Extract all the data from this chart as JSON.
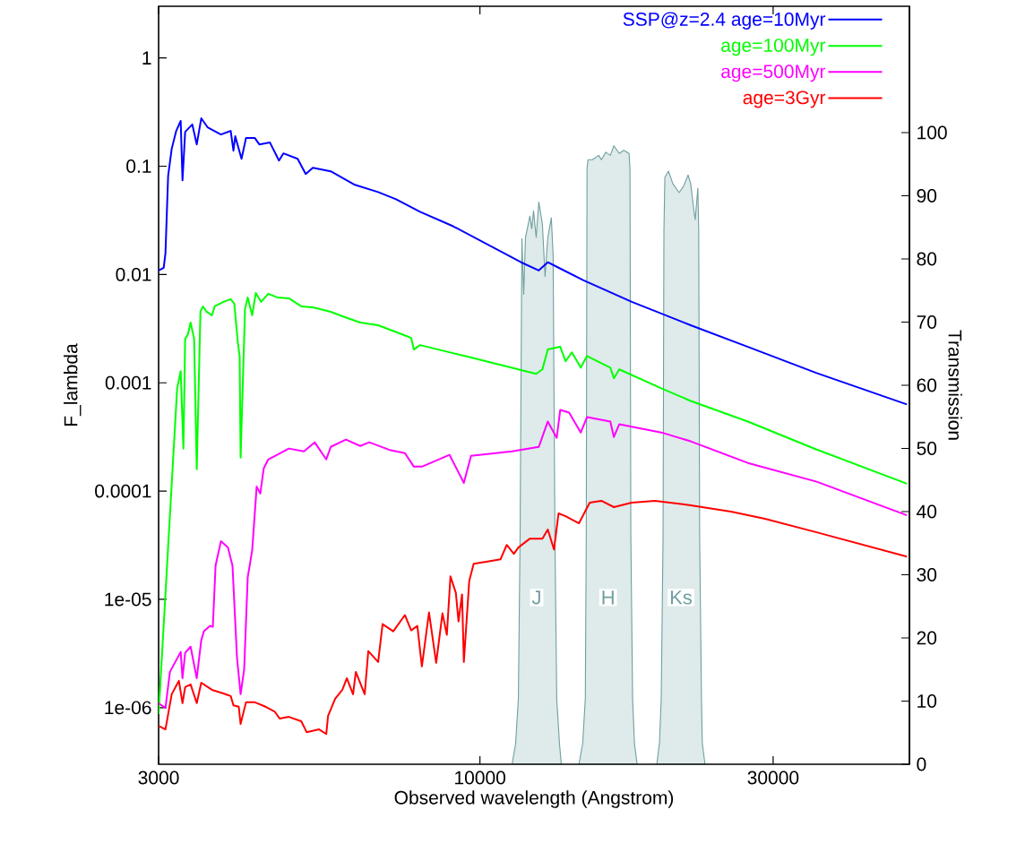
{
  "chart_data": {
    "type": "line",
    "xlabel": "Observed wavelength  (Angstrom)",
    "ylabel": "F_lambda",
    "y2label": "Transmission",
    "log": "xy",
    "legend": "top right",
    "marker": "none",
    "line_style": "solid",
    "xlim": [
      3000,
      50000
    ],
    "xticks": [
      3000,
      10000,
      30000
    ],
    "ylim": [
      3e-07,
      3
    ],
    "yticks": [
      1,
      0.1,
      0.01,
      0.001,
      0.0001,
      {
        "value": 1e-05,
        "label": "1e-05"
      },
      {
        "value": 1e-06,
        "label": "1e-06"
      }
    ],
    "y2lim": [
      0,
      120
    ],
    "y2ticks": [
      0,
      10,
      20,
      30,
      40,
      50,
      60,
      70,
      80,
      90,
      100
    ],
    "series": [
      {
        "name": "SSP@z=2.4  age=10Myr",
        "color": "#0000ff",
        "x": [
          3000,
          3058,
          3078,
          3109,
          3151,
          3205,
          3259,
          3281,
          3314,
          3404,
          3461,
          3520,
          3604,
          3789,
          3931,
          3971,
          3998,
          4093,
          4162,
          4303,
          4375,
          4553,
          4710,
          4788,
          5051,
          5206,
          5347,
          5718,
          6259,
          6829,
          7302,
          7991,
          9045,
          11665,
          12469,
          12895,
          13512,
          14745,
          17665,
          22029,
          27290,
          35318,
          49530
        ],
        "values": [
          0.0109,
          0.01156,
          0.0157,
          0.0815,
          0.1447,
          0.212,
          0.262,
          0.0741,
          0.208,
          0.243,
          0.159,
          0.277,
          0.229,
          0.1965,
          0.212,
          0.139,
          0.189,
          0.117,
          0.182,
          0.182,
          0.159,
          0.1655,
          0.1128,
          0.1315,
          0.117,
          0.0847,
          0.0968,
          0.0897,
          0.0673,
          0.0577,
          0.0495,
          0.0379,
          0.0279,
          0.01297,
          0.0109,
          0.01297,
          0.01135,
          0.00885,
          0.00559,
          0.0034,
          0.00215,
          0.00123,
          0.000631
        ]
      },
      {
        "name": "age=100Myr",
        "color": "#00ff00",
        "x": [
          3000,
          3216,
          3259,
          3292,
          3314,
          3348,
          3382,
          3427,
          3461,
          3509,
          3543,
          3591,
          3664,
          3701,
          3826,
          3931,
          3984,
          4037,
          4064,
          4079,
          4147,
          4189,
          4260,
          4318,
          4405,
          4524,
          4678,
          4887,
          5120,
          5347,
          5718,
          5973,
          6386,
          6829,
          7474,
          7729,
          7807,
          7991,
          9447,
          12346,
          12638,
          12895,
          13512,
          13785,
          14112,
          14591,
          14938,
          16301,
          16520,
          16853,
          19730,
          22029,
          27290,
          35318,
          49530
        ],
        "values": [
          8.71e-07,
          0.00089,
          0.00128,
          0.000247,
          0.00255,
          0.0028,
          0.0036,
          0.00255,
          0.000159,
          0.00453,
          0.00508,
          0.00453,
          0.0042,
          0.00508,
          0.00559,
          0.00592,
          0.00538,
          0.00236,
          0.00177,
          0.000204,
          0.0048,
          0.00615,
          0.0042,
          0.00676,
          0.00559,
          0.00664,
          0.00615,
          0.00603,
          0.00508,
          0.00498,
          0.00453,
          0.00411,
          0.0036,
          0.0034,
          0.0028,
          0.0026,
          0.00203,
          0.00223,
          0.00177,
          0.00121,
          0.00133,
          0.00203,
          0.00215,
          0.00158,
          0.00191,
          0.00138,
          0.00177,
          0.00138,
          0.0011,
          0.00133,
          0.00089,
          0.00068,
          0.000439,
          0.000242,
          0.000117
        ]
      },
      {
        "name": "age=500Myr",
        "color": "#ff00ff",
        "x": [
          3000,
          3078,
          3130,
          3259,
          3281,
          3314,
          3382,
          3461,
          3520,
          3555,
          3639,
          3676,
          3714,
          3789,
          3891,
          3957,
          4024,
          4079,
          4134,
          4189,
          4260,
          4332,
          4391,
          4448,
          4524,
          4678,
          4887,
          5172,
          5383,
          5623,
          5718,
          6053,
          6386,
          6605,
          7157,
          7550,
          7807,
          8045,
          8925,
          9415,
          9672,
          11280,
          12469,
          12895,
          13335,
          13512,
          13969,
          14591,
          14938,
          16301,
          16520,
          16853,
          19730,
          22029,
          27290,
          35318,
          49530
        ],
        "values": [
          1.096e-06,
          9.96e-07,
          2.14e-06,
          3.27e-06,
          1.87e-06,
          3.21e-06,
          3.66e-06,
          1.87e-06,
          4.19e-06,
          5.07e-06,
          5.69e-06,
          5.57e-06,
          2.05e-05,
          3.44e-05,
          3.01e-05,
          2.05e-05,
          2.91e-06,
          1.33e-06,
          2.27e-06,
          1.6e-05,
          2.84e-05,
          0.00011,
          9.48e-05,
          0.000162,
          0.000196,
          0.000216,
          0.000247,
          0.000233,
          0.000282,
          0.000196,
          0.000256,
          0.000299,
          0.000261,
          0.000282,
          0.000238,
          0.000224,
          0.000168,
          0.000168,
          0.000216,
          0.000119,
          0.000212,
          0.000233,
          0.000256,
          0.000439,
          0.00031,
          0.000562,
          0.000531,
          0.000348,
          0.000482,
          0.000439,
          0.000316,
          0.000414,
          0.000348,
          0.000288,
          0.000182,
          0.000122,
          5.98e-05
        ]
      },
      {
        "name": "age=3Gyr",
        "color": "#ff0000",
        "x": [
          3000,
          3078,
          3151,
          3237,
          3281,
          3314,
          3382,
          3461,
          3520,
          3664,
          3826,
          3931,
          3971,
          4051,
          4079,
          4162,
          4303,
          4479,
          4631,
          4724,
          4887,
          5120,
          5224,
          5474,
          5623,
          5660,
          5813,
          5973,
          6073,
          6217,
          6281,
          6494,
          6582,
          6829,
          6944,
          7228,
          7550,
          7729,
          7912,
          8045,
          8263,
          8488,
          8690,
          8834,
          8954,
          9137,
          9229,
          9352,
          9415,
          9607,
          9768,
          10340,
          10800,
          11055,
          11355,
          11548,
          12059,
          12638,
          12895,
          13199,
          13425,
          13785,
          14494,
          15090,
          15763,
          16520,
          17665,
          19272,
          22029,
          25610,
          29090,
          35318,
          49530
        ],
        "values": [
          6.79e-07,
          6.3e-07,
          1.33e-06,
          1.77e-06,
          1.1e-06,
          1.55e-06,
          1.64e-06,
          1.1e-06,
          1.7e-06,
          1.46e-06,
          1.35e-06,
          1.28e-06,
          1.05e-06,
          1.02e-06,
          7.06e-07,
          1.12e-06,
          1.12e-06,
          1.02e-06,
          9.23e-07,
          7.92e-07,
          8.22e-07,
          7.48e-07,
          5.94e-07,
          6.3e-07,
          5.71e-07,
          8.38e-07,
          1.21e-06,
          1.46e-06,
          1.87e-06,
          1.33e-06,
          2.14e-06,
          1.33e-06,
          3.33e-06,
          2.64e-06,
          5.91e-06,
          5.07e-06,
          7.16e-06,
          5.17e-06,
          5.69e-06,
          2.4e-06,
          7.57e-06,
          2.59e-06,
          7.43e-06,
          4.7e-06,
          1.63e-05,
          1.15e-05,
          6.25e-06,
          1.11e-05,
          2.64e-06,
          1.48e-05,
          2.13e-05,
          2.25e-05,
          2.34e-05,
          3.18e-05,
          2.63e-05,
          3.01e-05,
          3.64e-05,
          3.64e-05,
          4.41e-05,
          2.89e-05,
          6.22e-05,
          5.87e-05,
          5.04e-05,
          7.83e-05,
          8.13e-05,
          7.11e-05,
          7.83e-05,
          8.13e-05,
          7.4e-05,
          6.46e-05,
          5.55e-05,
          4.16e-05,
          2.48e-05
        ]
      },
      {
        "name": "J",
        "type": "area",
        "axis": "y2",
        "color": "#6f9fa0",
        "x": [
          11280,
          11431,
          11548,
          11624,
          11703,
          11782,
          11861,
          12059,
          12142,
          12224,
          12346,
          12469,
          12638,
          12764,
          12895,
          13068,
          13156,
          13245,
          13335,
          13472,
          13564
        ],
        "values": [
          0,
          3.3,
          10.4,
          36,
          83.2,
          74.4,
          83.4,
          86.8,
          84.8,
          87.6,
          83.4,
          89,
          85.5,
          77.2,
          83.4,
          86.5,
          80.5,
          36,
          10.4,
          3.3,
          0
        ]
      },
      {
        "name": "H",
        "type": "area",
        "axis": "y2",
        "color": "#6f9fa0",
        "x": [
          14494,
          14696,
          14842,
          14894,
          14938,
          14991,
          15241,
          15604,
          15763,
          16027,
          16301,
          16520,
          16853,
          17140,
          17486,
          17547,
          17603,
          17721,
          17843,
          18024
        ],
        "values": [
          0,
          3.3,
          10.4,
          36,
          94.3,
          95.7,
          95.7,
          96.4,
          95.7,
          96.9,
          96.4,
          97.9,
          96.7,
          97.2,
          96.7,
          94.3,
          36,
          10.4,
          3.3,
          0
        ]
      },
      {
        "name": "Ks",
        "type": "area",
        "axis": "y2",
        "color": "#6f9fa0",
        "x": [
          19401,
          19598,
          19730,
          19863,
          19927,
          19997,
          20265,
          20606,
          21091,
          21449,
          21813,
          22029,
          22326,
          22403,
          22627,
          22700,
          22780,
          22934,
          23008,
          23243
        ],
        "values": [
          0,
          3.3,
          10.4,
          36,
          84.4,
          92.9,
          93.9,
          91.9,
          90.5,
          91.5,
          93.3,
          91.9,
          87.2,
          86.2,
          91.2,
          84.4,
          36,
          10.4,
          3.3,
          0
        ]
      }
    ]
  }
}
